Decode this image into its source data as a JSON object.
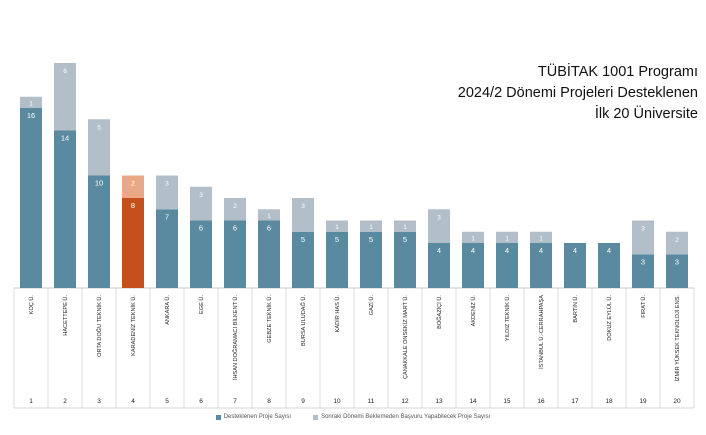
{
  "title_lines": [
    "TÜBİTAK 1001 Programı",
    "2024/2 Dönemi Projeleri Desteklenen",
    "İlk 20 Üniversite"
  ],
  "colors": {
    "supported": "#5a8aa0",
    "waiting": "#b2bec8",
    "highlight_supported": "#c4501e",
    "highlight_waiting": "#eba886",
    "grid": "#c8c8c8"
  },
  "legend": {
    "supported_label": "Desteklenen Proje Sayısı",
    "waiting_label": "Sonraki Dönemi Beklemeden Başvuru Yapabilecek Proje Sayısı"
  },
  "chart_data": {
    "type": "bar",
    "stacked": true,
    "highlight_index": 3,
    "categories": [
      "KOÇ Ü.",
      "HACETTEPE Ü.",
      "ORTA DOĞU TEKNİK Ü.",
      "KARADENİZ TEKNİK Ü.",
      "ANKARA Ü.",
      "EGE Ü.",
      "İHSAN DOĞRAMACI BİLKENT Ü.",
      "GEBZE TEKNİK Ü.",
      "BURSA ULUDAĞ Ü.",
      "KADİR HAS Ü.",
      "GAZİ Ü.",
      "ÇANAKKALE ONSEKİZ MART Ü.",
      "BOĞAZİÇİ Ü.",
      "AKDENİZ Ü.",
      "YILDIZ TEKNİK Ü.",
      "İSTANBUL Ü.-CERRAHPAŞA",
      "BARTIN Ü.",
      "DOKUZ EYLÜL Ü.",
      "FIRAT Ü.",
      "İZMİR YÜKSEK TEKNOLOJİ ENS."
    ],
    "ranks": [
      "1",
      "2",
      "3",
      "4",
      "5",
      "6",
      "7",
      "8",
      "9",
      "10",
      "11",
      "12",
      "13",
      "14",
      "15",
      "16",
      "17",
      "18",
      "19",
      "20"
    ],
    "series": [
      {
        "name": "Desteklenen Proje Sayısı",
        "values": [
          16,
          14,
          10,
          8,
          7,
          6,
          6,
          6,
          5,
          5,
          5,
          5,
          4,
          4,
          4,
          4,
          4,
          4,
          3,
          3
        ]
      },
      {
        "name": "Sonraki Dönemi Beklemeden Başvuru Yapabilecek Proje Sayısı",
        "values": [
          1,
          6,
          5,
          2,
          3,
          3,
          2,
          1,
          3,
          1,
          1,
          1,
          3,
          1,
          1,
          1,
          0,
          0,
          3,
          2
        ]
      }
    ],
    "ylim": [
      0,
      20
    ],
    "grid": false,
    "legend_position": "bottom"
  }
}
